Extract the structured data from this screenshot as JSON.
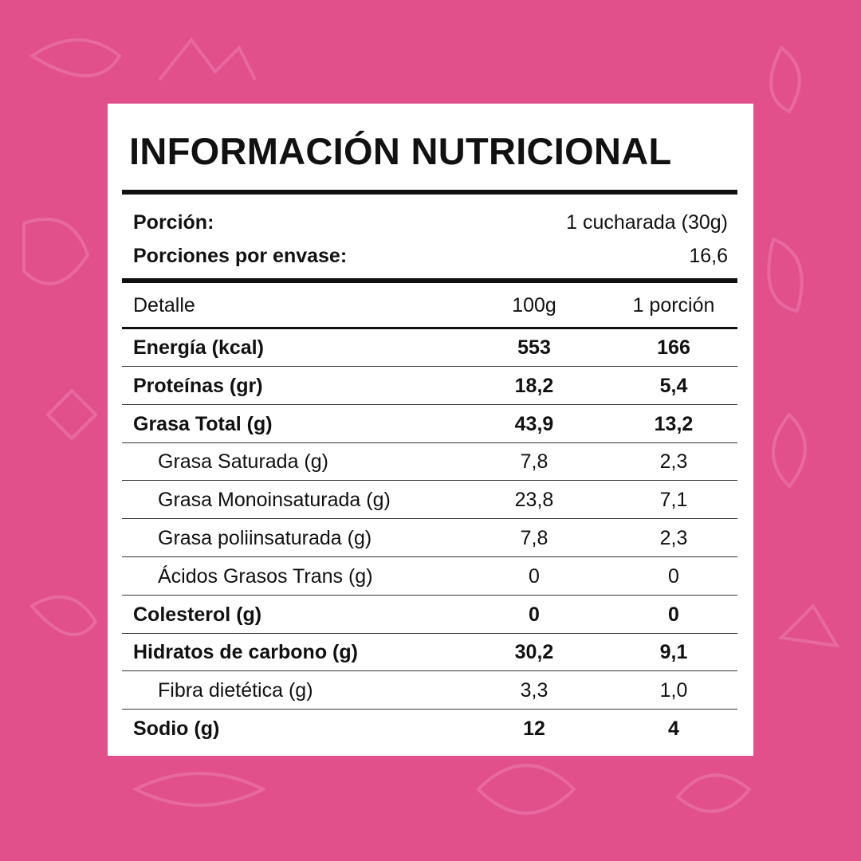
{
  "title": "INFORMACIÓN NUTRICIONAL",
  "serving": {
    "label": "Porción:",
    "value": "1 cucharada (30g)"
  },
  "servings_per_container": {
    "label": "Porciones por envase:",
    "value": "16,6"
  },
  "table": {
    "header": [
      "Detalle",
      "100g",
      "1 porción"
    ],
    "rows": [
      [
        "Energía (kcal)",
        "553",
        "166"
      ],
      [
        "Proteínas (gr)",
        "18,2",
        "5,4"
      ],
      [
        "Grasa Total (g)",
        "43,9",
        "13,2"
      ],
      [
        "Grasa Saturada (g)",
        "7,8",
        "2,3"
      ],
      [
        "Grasa Monoinsaturada (g)",
        "23,8",
        "7,1"
      ],
      [
        "Grasa poliinsaturada (g)",
        "7,8",
        "2,3"
      ],
      [
        "Ácidos Grasos Trans (g)",
        "0",
        "0"
      ],
      [
        "Colesterol (g)",
        "0",
        "0"
      ],
      [
        "Hidratos de carbono (g)",
        "30,2",
        "9,1"
      ],
      [
        "Fibra dietética (g)",
        "3,3",
        "1,0"
      ],
      [
        "Sodio (g)",
        "12",
        "4"
      ]
    ]
  }
}
